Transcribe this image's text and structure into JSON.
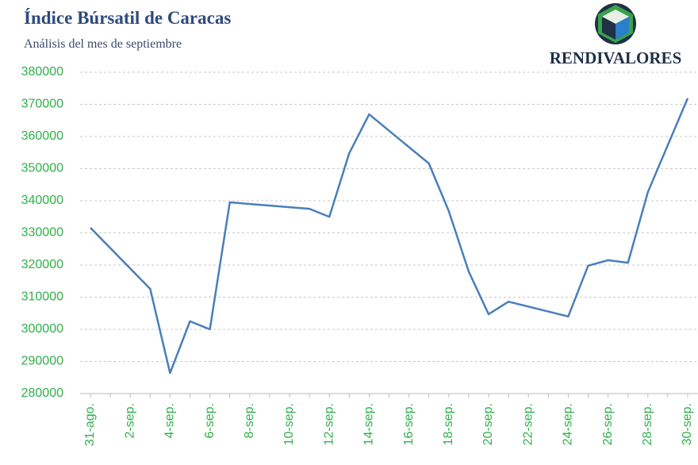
{
  "chart_data": {
    "type": "line",
    "title": "Índice Búrsatil de Caracas",
    "subtitle": "Análisis del mes de septiembre",
    "brand": "RENDIVALORES",
    "categories": [
      "31-ago.",
      null,
      "2-sep.",
      null,
      "4-sep.",
      null,
      "6-sep.",
      null,
      "8-sep.",
      null,
      "10-sep.",
      null,
      "12-sep.",
      null,
      "14-sep.",
      null,
      "16-sep.",
      null,
      "18-sep.",
      null,
      "20-sep.",
      null,
      "22-sep.",
      null,
      "24-sep.",
      null,
      "26-sep.",
      null,
      "28-sep.",
      null,
      "30-sep."
    ],
    "series": [
      {
        "name": "Índice",
        "color": "#4a7ebb",
        "values": [
          331600,
          null,
          null,
          312600,
          286400,
          302500,
          300000,
          339500,
          null,
          null,
          null,
          337500,
          335000,
          354800,
          366900,
          null,
          null,
          351600,
          336800,
          318000,
          304700,
          308600,
          null,
          null,
          304000,
          319800,
          321500,
          320700,
          342700,
          null,
          371900
        ]
      }
    ],
    "connect_gaps": true,
    "ylim": [
      280000,
      380000
    ],
    "yticks": [
      280000,
      290000,
      300000,
      310000,
      320000,
      330000,
      340000,
      350000,
      360000,
      370000,
      380000
    ],
    "grid": true
  }
}
